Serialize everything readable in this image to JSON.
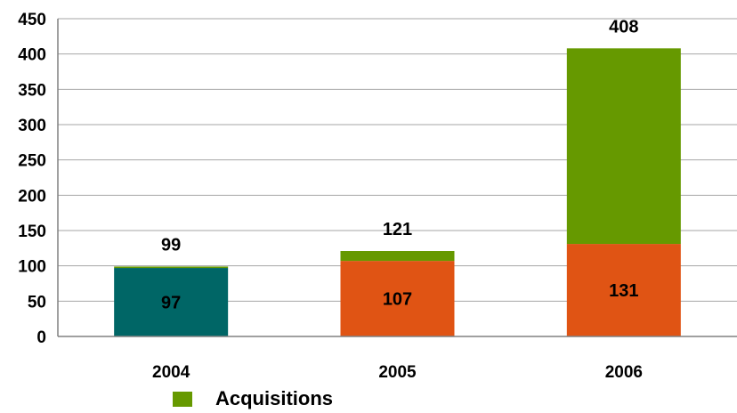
{
  "chart_data": {
    "type": "bar",
    "stacked": true,
    "categories": [
      "2004",
      "2005",
      "2006"
    ],
    "ylim": [
      0,
      450
    ],
    "yticks": [
      0,
      50,
      100,
      150,
      200,
      250,
      300,
      350,
      400,
      450
    ],
    "grid": true,
    "base": {
      "values": [
        97,
        107,
        131
      ],
      "colors": [
        "#006666",
        "#E05414",
        "#E05414"
      ]
    },
    "series": [
      {
        "name": "Acquisitions",
        "color": "#669900",
        "values": [
          2,
          14,
          277
        ]
      }
    ],
    "totals": [
      99,
      121,
      408
    ],
    "legend_position": "bottom-left"
  },
  "legend": {
    "label": "Acquisitions",
    "color": "#669900"
  }
}
